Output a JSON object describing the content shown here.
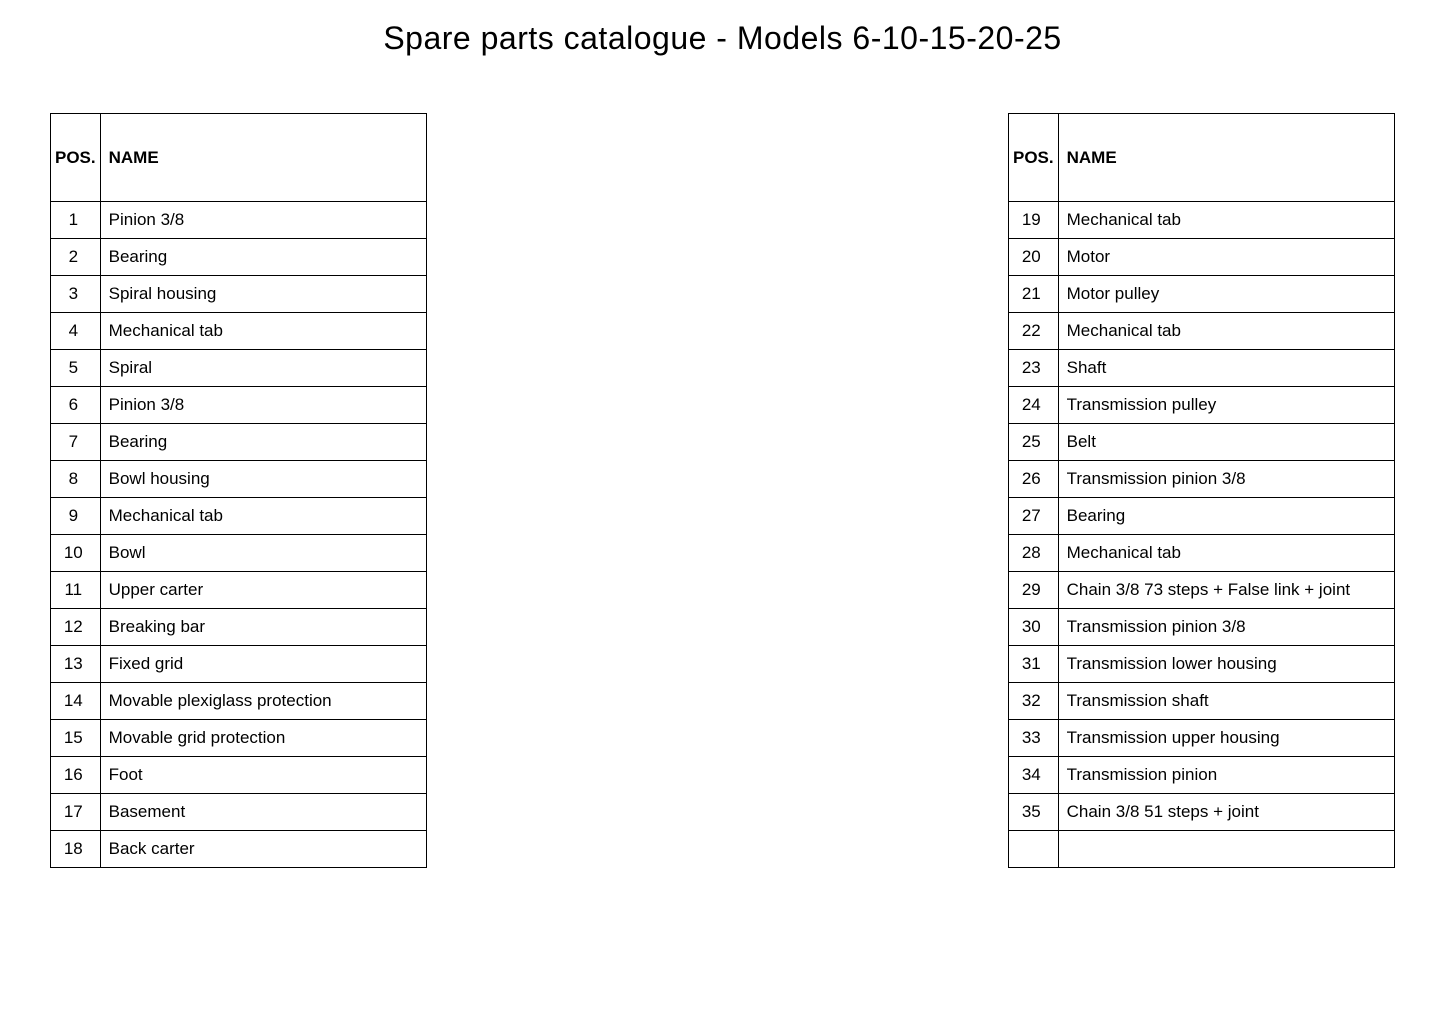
{
  "title": "Spare parts catalogue - Models 6-10-15-20-25",
  "table_headers": {
    "pos": "POS.",
    "name": "NAME"
  },
  "left_table": {
    "columns": [
      "pos",
      "name"
    ],
    "rows": [
      {
        "pos": "1",
        "name": "Pinion 3/8"
      },
      {
        "pos": "2",
        "name": "Bearing"
      },
      {
        "pos": "3",
        "name": "Spiral housing"
      },
      {
        "pos": "4",
        "name": "Mechanical tab"
      },
      {
        "pos": "5",
        "name": "Spiral"
      },
      {
        "pos": "6",
        "name": "Pinion 3/8"
      },
      {
        "pos": "7",
        "name": "Bearing"
      },
      {
        "pos": "8",
        "name": "Bowl housing"
      },
      {
        "pos": "9",
        "name": "Mechanical tab"
      },
      {
        "pos": "10",
        "name": "Bowl"
      },
      {
        "pos": "11",
        "name": "Upper carter"
      },
      {
        "pos": "12",
        "name": "Breaking bar"
      },
      {
        "pos": "13",
        "name": "Fixed grid"
      },
      {
        "pos": "14",
        "name": "Movable plexiglass protection"
      },
      {
        "pos": "15",
        "name": "Movable grid protection"
      },
      {
        "pos": "16",
        "name": "Foot"
      },
      {
        "pos": "17",
        "name": "Basement"
      },
      {
        "pos": "18",
        "name": "Back carter"
      }
    ]
  },
  "right_table": {
    "columns": [
      "pos",
      "name"
    ],
    "rows": [
      {
        "pos": "19",
        "name": "Mechanical tab"
      },
      {
        "pos": "20",
        "name": "Motor"
      },
      {
        "pos": "21",
        "name": "Motor pulley"
      },
      {
        "pos": "22",
        "name": "Mechanical tab"
      },
      {
        "pos": "23",
        "name": "Shaft"
      },
      {
        "pos": "24",
        "name": "Transmission pulley"
      },
      {
        "pos": "25",
        "name": "Belt"
      },
      {
        "pos": "26",
        "name": "Transmission pinion 3/8"
      },
      {
        "pos": "27",
        "name": "Bearing"
      },
      {
        "pos": "28",
        "name": "Mechanical tab"
      },
      {
        "pos": "29",
        "name": "Chain 3/8 73 steps + False link + joint"
      },
      {
        "pos": "30",
        "name": "Transmission pinion 3/8"
      },
      {
        "pos": "31",
        "name": "Transmission lower housing"
      },
      {
        "pos": "32",
        "name": "Transmission shaft"
      },
      {
        "pos": "33",
        "name": "Transmission upper housing"
      },
      {
        "pos": "34",
        "name": "Transmission pinion"
      },
      {
        "pos": "35",
        "name": "Chain 3/8 51 steps + joint"
      },
      {
        "pos": "",
        "name": ""
      }
    ]
  },
  "styling": {
    "background_color": "#ffffff",
    "text_color": "#000000",
    "border_color": "#000000",
    "title_fontsize": 32,
    "cell_fontsize": 17,
    "header_row_height": 88,
    "data_row_height": 37,
    "pos_col_width": 48,
    "left_table_width": 377,
    "right_table_width": 387
  }
}
